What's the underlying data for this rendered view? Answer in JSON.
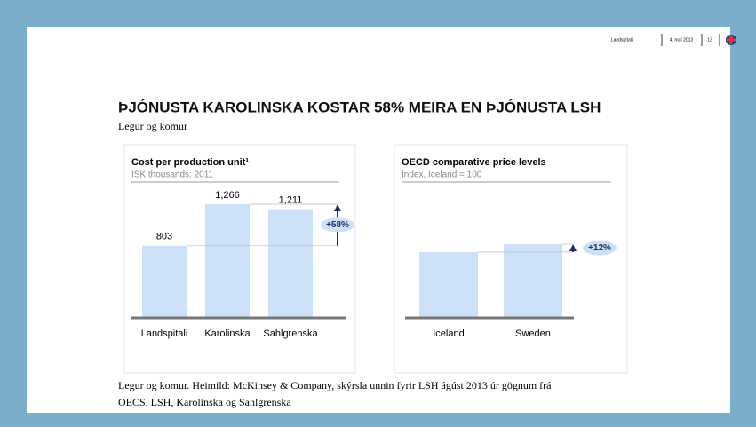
{
  "header": {
    "org": "Landspítali",
    "date": "4. maí 2013",
    "page": "13"
  },
  "title": "ÞJÓNUSTA KAROLINSKA KOSTAR 58% MEIRA EN ÞJÓNUSTA LSH",
  "subtitle": "Legur og komur",
  "footnote": [
    "Legur og komur. Heimild: McKinsey & Company, skýrsla unnin fyrir LSH ágúst 2013 úr gögnum frá",
    "OECS, LSH, Karolinska og Sahlgrenska"
  ],
  "chart_data": [
    {
      "type": "bar",
      "title": "Cost per production unit¹",
      "subtitle": "ISK thousands; 2011",
      "categories": [
        "Landspitali",
        "Karolinska",
        "Sahlgrenska"
      ],
      "values": [
        803,
        1266,
        1211
      ],
      "value_labels": [
        "803",
        "1,266",
        "1,211"
      ],
      "color": "#cce0f7",
      "annotation": "+58%"
    },
    {
      "type": "bar",
      "title": "OECD comparative price levels",
      "subtitle": "Index, Iceland = 100",
      "categories": [
        "Iceland",
        "Sweden"
      ],
      "values": [
        100,
        112
      ],
      "color": "#cce0f7",
      "annotation": "+12%"
    }
  ]
}
